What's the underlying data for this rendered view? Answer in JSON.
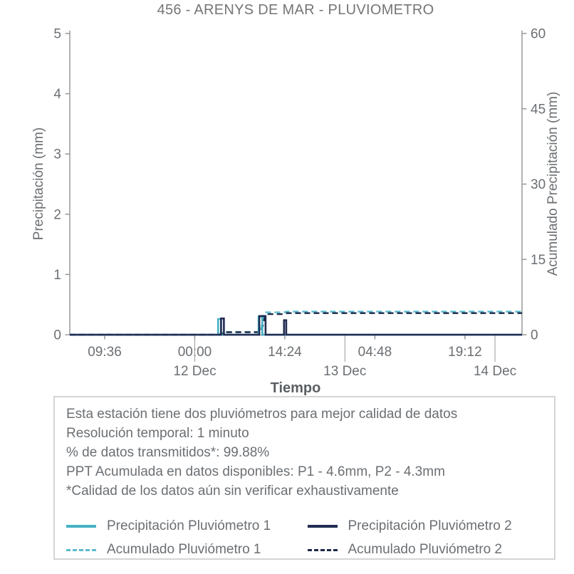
{
  "title": "456 - ARENYS DE MAR - PLUVIOMETRO",
  "chart_data": {
    "type": "line",
    "title": "456 - ARENYS DE MAR - PLUVIOMETRO",
    "xlabel": "Tiempo",
    "ylabel_left": "Precipitación (mm)",
    "ylabel_right": "Acumulado Precipitación (mm)",
    "grid": false,
    "legend_position": "bottom-box",
    "x_axis": {
      "span_hours": 72.3,
      "ticks": [
        {
          "label": "09:36",
          "t": 5.58
        },
        {
          "label": "00:00",
          "t": 19.98
        },
        {
          "label": "14:24",
          "t": 34.38
        },
        {
          "label": "04:48",
          "t": 48.78
        },
        {
          "label": "19:12",
          "t": 63.18
        }
      ],
      "dividers": [
        {
          "label": "12 Dec",
          "t": 19.98
        },
        {
          "label": "13 Dec",
          "t": 43.98
        },
        {
          "label": "14 Dec",
          "t": 67.98
        }
      ]
    },
    "yleft": {
      "range": [
        0,
        5
      ],
      "ticks": [
        0,
        1,
        2,
        3,
        4,
        5
      ]
    },
    "yright": {
      "range": [
        0,
        60
      ],
      "ticks": [
        0,
        15,
        30,
        45,
        60
      ]
    },
    "series": [
      {
        "name": "Precipitación Pluviómetro 1",
        "axis": "left",
        "color": "#47b2c3",
        "dash": false,
        "width": 2.6,
        "points": [
          [
            0,
            0
          ],
          [
            23.72,
            0
          ],
          [
            23.72,
            0.26
          ],
          [
            24.18,
            0.26
          ],
          [
            24.18,
            0
          ],
          [
            30.18,
            0
          ],
          [
            30.18,
            0.3
          ],
          [
            30.78,
            0.3
          ],
          [
            30.78,
            0
          ],
          [
            72.3,
            0
          ]
        ]
      },
      {
        "name": "Precipitación Pluviómetro 2",
        "axis": "left",
        "color": "#212b52",
        "dash": false,
        "width": 2.6,
        "points": [
          [
            0,
            0
          ],
          [
            24.18,
            0
          ],
          [
            24.18,
            0.27
          ],
          [
            24.64,
            0.27
          ],
          [
            24.64,
            0
          ],
          [
            30.3,
            0
          ],
          [
            30.3,
            0.31
          ],
          [
            31.3,
            0.31
          ],
          [
            31.3,
            0
          ],
          [
            34.25,
            0
          ],
          [
            34.25,
            0.24
          ],
          [
            34.6,
            0.24
          ],
          [
            34.6,
            0
          ],
          [
            72.3,
            0
          ]
        ]
      },
      {
        "name": "Acumulado Pluviómetro 1",
        "axis": "right",
        "color": "#58bccd",
        "dash": true,
        "width": 2.4,
        "points": [
          [
            0,
            0
          ],
          [
            23.9,
            0
          ],
          [
            24.3,
            0.55
          ],
          [
            30.5,
            0.55
          ],
          [
            31.1,
            4.45
          ],
          [
            34.3,
            4.45
          ],
          [
            34.6,
            4.6
          ],
          [
            72.3,
            4.6
          ]
        ]
      },
      {
        "name": "Acumulado Pluviómetro 2",
        "axis": "right",
        "color": "#1d2949",
        "dash": true,
        "width": 2.4,
        "points": [
          [
            0,
            0
          ],
          [
            24.2,
            0
          ],
          [
            24.7,
            0.5
          ],
          [
            30.6,
            0.5
          ],
          [
            31.3,
            4.1
          ],
          [
            34.3,
            4.1
          ],
          [
            34.7,
            4.3
          ],
          [
            72.3,
            4.3
          ]
        ]
      }
    ],
    "totals": {
      "P1_acumulado_mm": 4.6,
      "P2_acumulado_mm": 4.3
    }
  },
  "info_box": {
    "lines": [
      "Esta estación tiene dos pluviómetros para mejor calidad de datos",
      "Resolución temporal: 1 minuto",
      "% de datos transmitidos*: 99.88%",
      "PPT Acumulada en datos disponibles: P1 - 4.6mm, P2 - 4.3mm",
      "*Calidad de los datos aún sin verificar exhaustivamente"
    ]
  },
  "legend": {
    "items": [
      {
        "label": "Precipitación Pluviómetro 1",
        "color": "#47b2c3",
        "dash": false
      },
      {
        "label": "Precipitación Pluviómetro 2",
        "color": "#212b52",
        "dash": false
      },
      {
        "label": "Acumulado Pluviómetro 1",
        "color": "#58bccd",
        "dash": true
      },
      {
        "label": "Acumulado Pluviómetro 2",
        "color": "#1d2949",
        "dash": true
      }
    ]
  },
  "colors": {
    "accent_teal": "#47b2c3",
    "accent_navy": "#212b52",
    "axis_line": "#999999",
    "tick_text": "#6b6f73",
    "title_text": "#757575",
    "box_border": "#d4d4d4",
    "background": "#ffffff"
  }
}
